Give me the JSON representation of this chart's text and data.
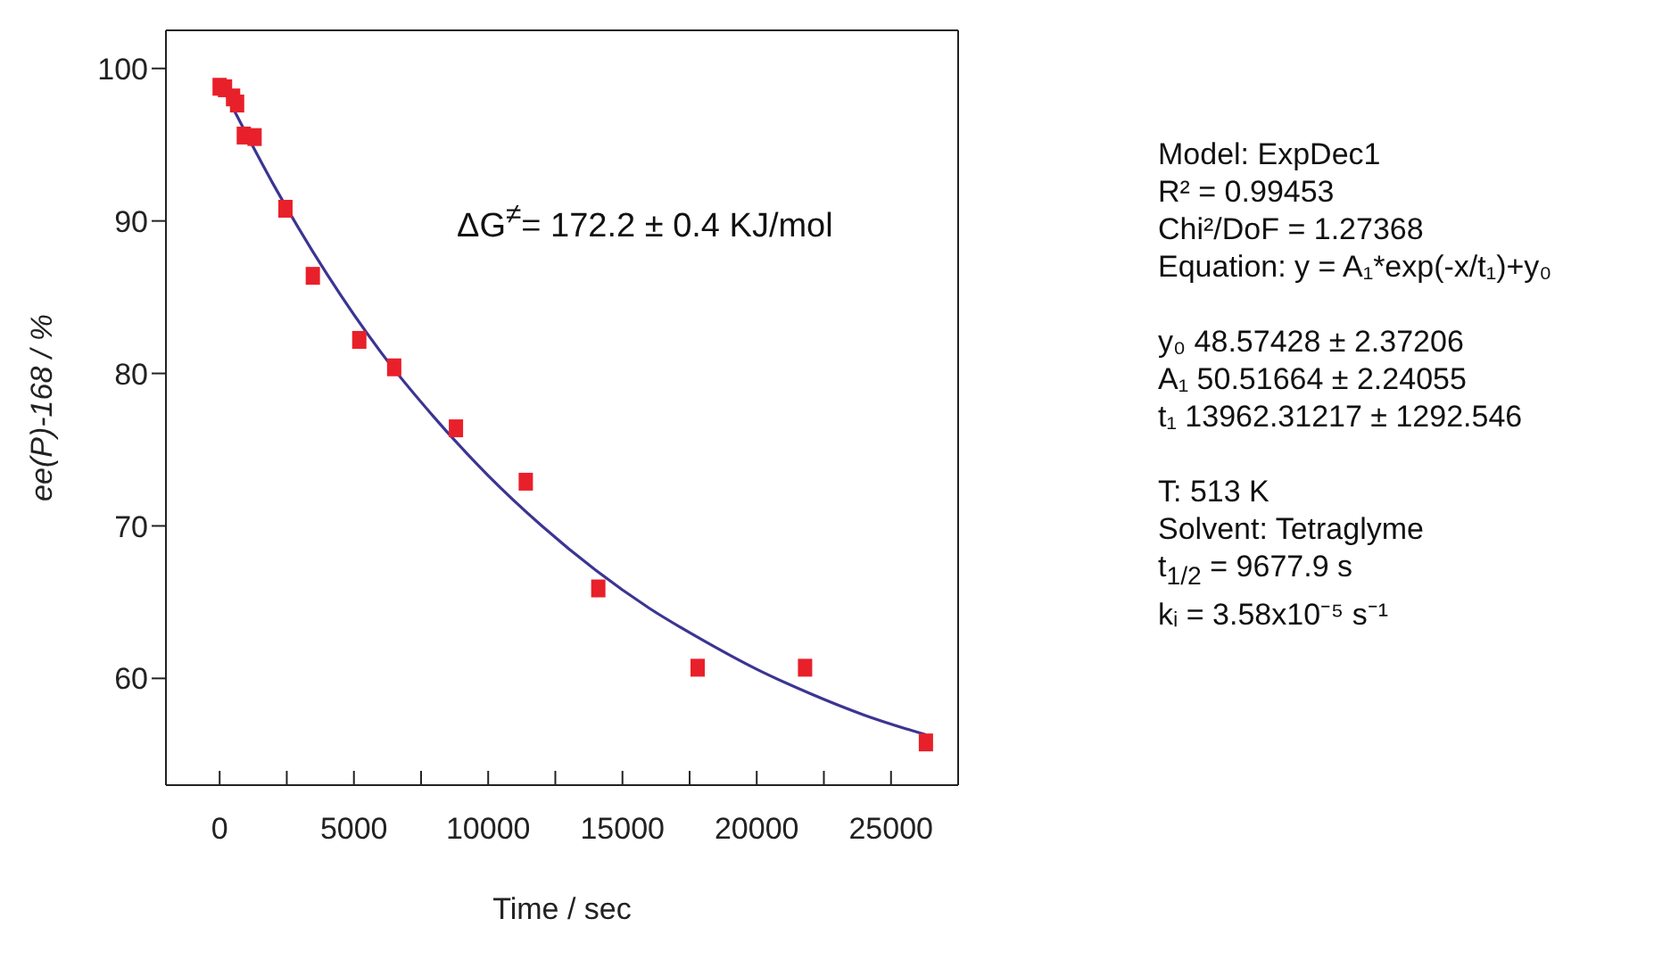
{
  "chart_data": {
    "type": "scatter",
    "xlabel": "Time / sec",
    "ylabel": "ee(P)-168 / %",
    "xlim": [
      -2000,
      27500
    ],
    "ylim": [
      53,
      102.5
    ],
    "xticks": [
      0,
      {
        "value": 2500,
        "label": null
      },
      5000,
      {
        "value": 7500,
        "label": null
      },
      10000,
      {
        "value": 12500,
        "label": null
      },
      15000,
      {
        "value": 17500,
        "label": null
      },
      20000,
      {
        "value": 22500,
        "label": null
      },
      25000,
      {
        "value": 27500,
        "label": null
      }
    ],
    "yticks": [
      60,
      70,
      80,
      90,
      100
    ],
    "grid": false,
    "legend": false,
    "series": [
      {
        "marker": "square",
        "color": "#e8202a",
        "x": [
          0,
          200,
          500,
          650,
          900,
          1300,
          2450,
          3470,
          5200,
          6500,
          8800,
          11400,
          14100,
          17800,
          21800,
          26300
        ],
        "values": [
          98.8,
          98.7,
          98.1,
          97.7,
          95.6,
          95.5,
          90.8,
          86.4,
          82.2,
          80.4,
          76.4,
          72.9,
          65.9,
          60.7,
          60.7,
          55.8
        ]
      },
      {
        "type": "line",
        "marker": "none",
        "line_style": "solid",
        "color": "#3b3592",
        "x": [
          0,
          2000,
          4000,
          6000,
          8000,
          10000,
          12000,
          14000,
          16000,
          18000,
          20000,
          22000,
          24000,
          26300
        ],
        "values": [
          99.1,
          92.4,
          86.5,
          81.4,
          77.1,
          73.3,
          70.0,
          67.1,
          64.6,
          62.5,
          60.6,
          59.0,
          57.6,
          56.3
        ]
      }
    ],
    "annotations": [
      "ΔG$^{≠}$= 172.2 ± 0.4 KJ/mol",
      "Model: ExpDec1\nR² = 0.99453\nChi²/DoF = 1.27368\nEquation: y = A₁*exp(-x/t₁)+y₀",
      "y₀ 48.57428 ± 2.37206\nA₁ 50.51664 ± 2.24055\nt₁ 13962.31217 ± 1292.546",
      "T: 513 K\nSolvent: Tetraglyme\nt$_{1/2}$ = 9677.9 s\nkᵢ = 3.58x10⁻⁵ s⁻¹"
    ]
  }
}
